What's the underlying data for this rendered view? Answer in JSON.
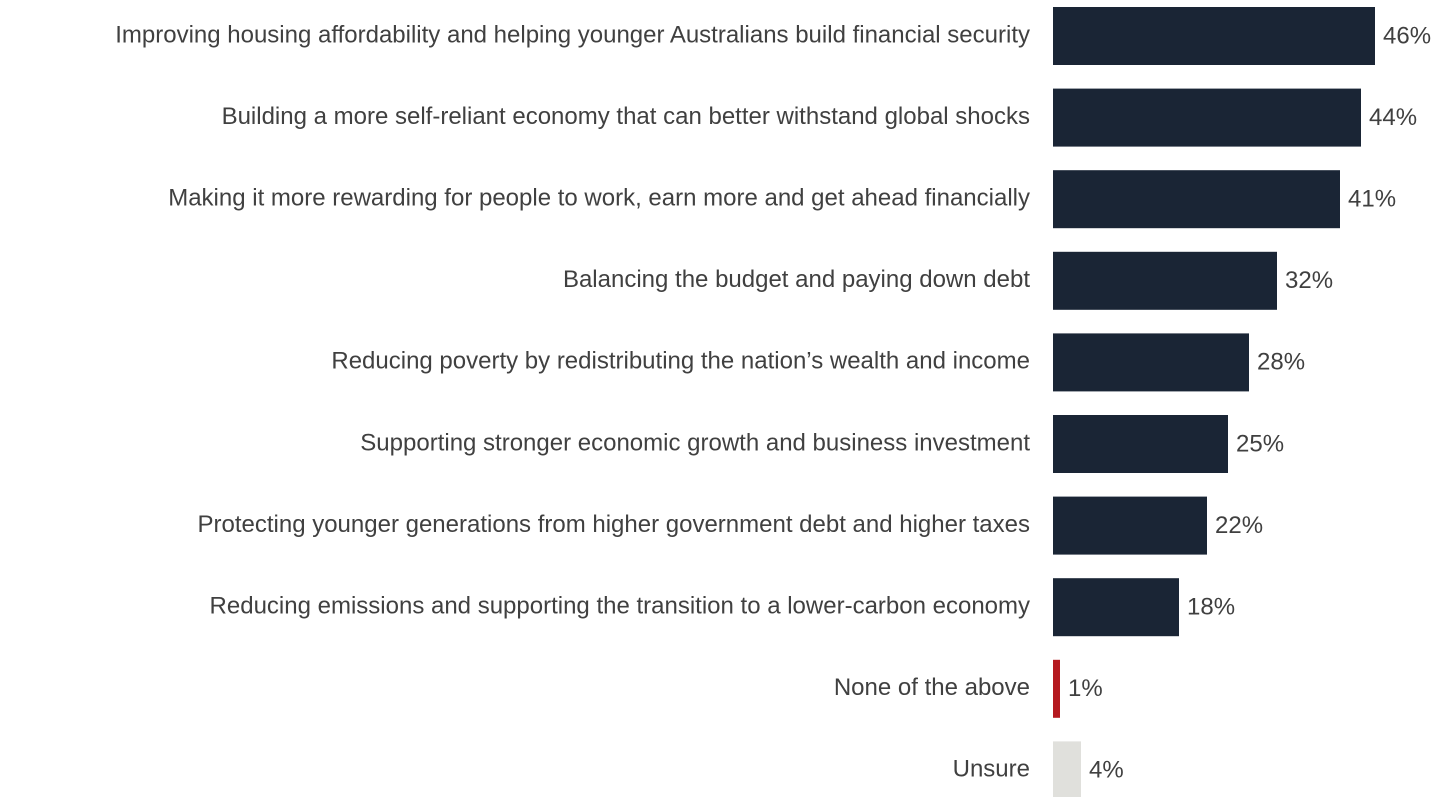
{
  "chart_data": {
    "type": "barh",
    "categories": [
      "Improving housing affordability and helping younger Australians build financial security",
      "Building a more self-reliant economy that can better withstand global shocks",
      "Making it more rewarding for people to work, earn more and get ahead financially",
      "Balancing the budget and paying down debt",
      "Reducing poverty by redistributing the nation’s wealth and income",
      "Supporting stronger economic growth and business investment",
      "Protecting younger generations from higher government debt and higher taxes",
      "Reducing emissions and supporting the transition to a lower-carbon economy",
      "None of the above",
      "Unsure"
    ],
    "values": [
      46,
      44,
      41,
      32,
      28,
      25,
      22,
      18,
      1,
      4
    ],
    "value_labels": [
      "46%",
      "44%",
      "41%",
      "32%",
      "28%",
      "25%",
      "22%",
      "18%",
      "1%",
      "4%"
    ],
    "colors": [
      "#1a2535",
      "#1a2535",
      "#1a2535",
      "#1a2535",
      "#1a2535",
      "#1a2535",
      "#1a2535",
      "#1a2535",
      "#b5191f",
      "#e0e0dc"
    ]
  }
}
